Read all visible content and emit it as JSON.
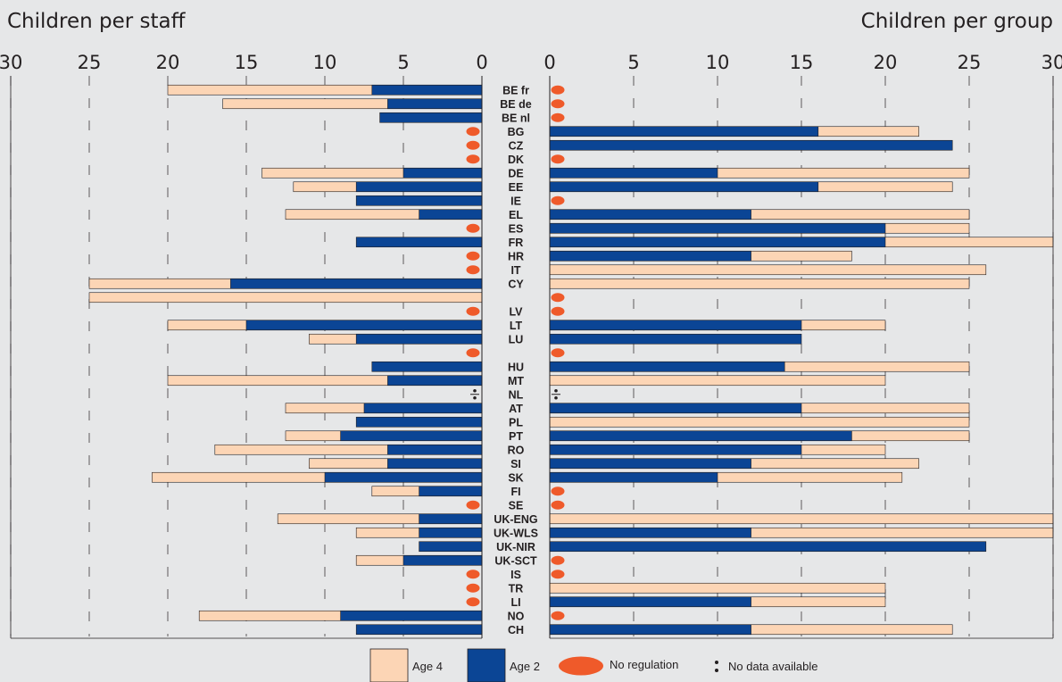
{
  "chart_data": {
    "type": "bar",
    "left_panel": {
      "title": "Children per staff",
      "ticks": [
        "30",
        "25",
        "20",
        "15",
        "10",
        "5",
        "0"
      ],
      "range": [
        0,
        30
      ]
    },
    "right_panel": {
      "title": "Children per group",
      "ticks": [
        "0",
        "5",
        "10",
        "15",
        "20",
        "25",
        "30"
      ],
      "range": [
        0,
        30
      ]
    },
    "legend": {
      "age4": "Age 4",
      "age2": "Age 2",
      "noreg": "No regulation",
      "nodata": "No data available"
    },
    "countries": [
      {
        "code": "BE fr",
        "staff": {
          "age4": 20,
          "age2": 7
        },
        "group": "noreg"
      },
      {
        "code": "BE de",
        "staff": {
          "age4": 16.5,
          "age2": 6
        },
        "group": "noreg"
      },
      {
        "code": "BE nl",
        "staff": {
          "age4": 0,
          "age2": 6.5
        },
        "group": "noreg"
      },
      {
        "code": "BG",
        "staff": "noreg",
        "group": {
          "age4": 22,
          "age2": 16
        }
      },
      {
        "code": "CZ",
        "staff": "noreg",
        "group": {
          "age4": 0,
          "age2": 24
        }
      },
      {
        "code": "DK",
        "staff": "noreg",
        "group": "noreg"
      },
      {
        "code": "DE",
        "staff": {
          "age4": 14,
          "age2": 5
        },
        "group": {
          "age4": 25,
          "age2": 10
        }
      },
      {
        "code": "EE",
        "staff": {
          "age4": 12,
          "age2": 8
        },
        "group": {
          "age4": 24,
          "age2": 16
        }
      },
      {
        "code": "IE",
        "staff": {
          "age4": 0,
          "age2": 8
        },
        "group": "noreg"
      },
      {
        "code": "EL",
        "staff": {
          "age4": 12.5,
          "age2": 4
        },
        "group": {
          "age4": 25,
          "age2": 12
        }
      },
      {
        "code": "ES",
        "staff": "noreg",
        "group": {
          "age4": 25,
          "age2": 20
        }
      },
      {
        "code": "FR",
        "staff": {
          "age4": 0,
          "age2": 8
        },
        "group": {
          "age4": 30,
          "age2": 20
        }
      },
      {
        "code": "HR",
        "staff": "noreg",
        "group": {
          "age4": 18,
          "age2": 12
        }
      },
      {
        "code": "IT",
        "staff": "noreg",
        "group": {
          "age4": 26,
          "age2": 0
        }
      },
      {
        "code": "CY",
        "staff": {
          "age4": 25,
          "age2": 16
        },
        "group": {
          "age4": 25,
          "age2": 0
        }
      },
      {
        "code": "",
        "staff": {
          "age4": 25,
          "age2": 0
        },
        "group": "noreg"
      },
      {
        "code": "LV",
        "staff": "noreg",
        "group": "noreg"
      },
      {
        "code": "LT",
        "staff": {
          "age4": 20,
          "age2": 15
        },
        "group": {
          "age4": 20,
          "age2": 15
        }
      },
      {
        "code": "LU",
        "staff": {
          "age4": 11,
          "age2": 8
        },
        "group": {
          "age4": 0,
          "age2": 15
        }
      },
      {
        "code": "",
        "staff": "noreg",
        "group": "noreg"
      },
      {
        "code": "HU",
        "staff": {
          "age4": 0,
          "age2": 7
        },
        "group": {
          "age4": 25,
          "age2": 14
        }
      },
      {
        "code": "MT",
        "staff": {
          "age4": 20,
          "age2": 6
        },
        "group": {
          "age4": 20,
          "age2": 0
        }
      },
      {
        "code": "NL",
        "staff": "nodata",
        "group": "nodata"
      },
      {
        "code": "AT",
        "staff": {
          "age4": 12.5,
          "age2": 7.5
        },
        "group": {
          "age4": 25,
          "age2": 15
        }
      },
      {
        "code": "PL",
        "staff": {
          "age4": 0,
          "age2": 8
        },
        "group": {
          "age4": 25,
          "age2": 0
        }
      },
      {
        "code": "PT",
        "staff": {
          "age4": 12.5,
          "age2": 9
        },
        "group": {
          "age4": 25,
          "age2": 18
        }
      },
      {
        "code": "RO",
        "staff": {
          "age4": 17,
          "age2": 6
        },
        "group": {
          "age4": 20,
          "age2": 15
        }
      },
      {
        "code": "SI",
        "staff": {
          "age4": 11,
          "age2": 6
        },
        "group": {
          "age4": 22,
          "age2": 12
        }
      },
      {
        "code": "SK",
        "staff": {
          "age4": 21,
          "age2": 10
        },
        "group": {
          "age4": 21,
          "age2": 10
        }
      },
      {
        "code": "FI",
        "staff": {
          "age4": 7,
          "age2": 4
        },
        "group": "noreg"
      },
      {
        "code": "SE",
        "staff": "noreg",
        "group": "noreg"
      },
      {
        "code": "UK-ENG",
        "staff": {
          "age4": 13,
          "age2": 4
        },
        "group": {
          "age4": 30,
          "age2": 0
        }
      },
      {
        "code": "UK-WLS",
        "staff": {
          "age4": 8,
          "age2": 4
        },
        "group": {
          "age4": 30,
          "age2": 12
        }
      },
      {
        "code": "UK-NIR",
        "staff": {
          "age4": 0,
          "age2": 4
        },
        "group": {
          "age4": 0,
          "age2": 26
        }
      },
      {
        "code": "UK-SCT",
        "staff": {
          "age4": 8,
          "age2": 5
        },
        "group": "noreg"
      },
      {
        "code": "IS",
        "staff": "noreg",
        "group": "noreg"
      },
      {
        "code": "TR",
        "staff": "noreg",
        "group": {
          "age4": 20,
          "age2": 0
        }
      },
      {
        "code": "LI",
        "staff": "noreg",
        "group": {
          "age4": 20,
          "age2": 12
        }
      },
      {
        "code": "NO",
        "staff": {
          "age4": 18,
          "age2": 9
        },
        "group": "noreg"
      },
      {
        "code": "CH",
        "staff": {
          "age4": 0,
          "age2": 8
        },
        "group": {
          "age4": 24,
          "age2": 12
        }
      }
    ]
  },
  "colors": {
    "age4": "#fcd5b5",
    "age2": "#0b4595",
    "noreg": "#ef5a2a",
    "ink": "#231f20",
    "background": "#e6e7e8"
  }
}
